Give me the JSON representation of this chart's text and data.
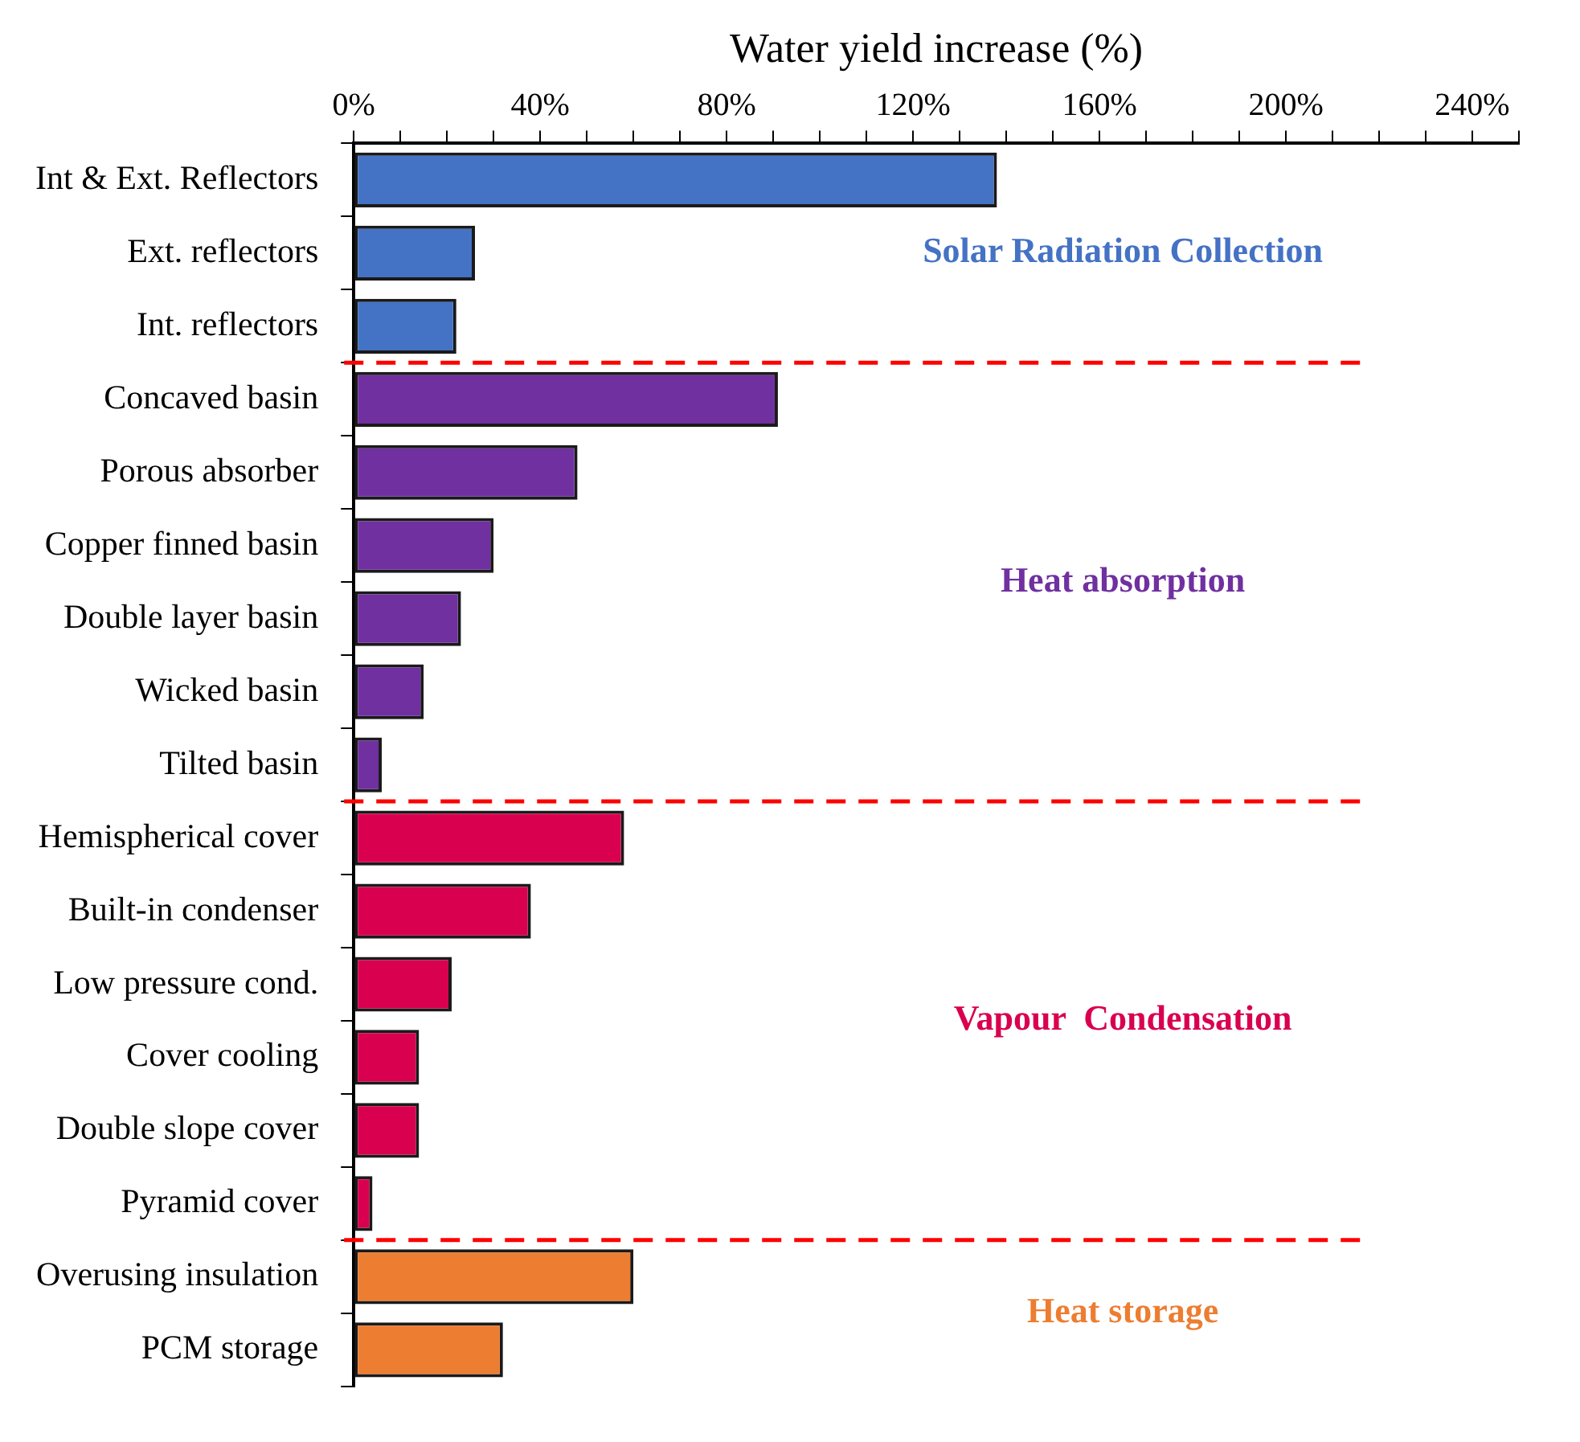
{
  "chart_data": {
    "type": "bar",
    "orientation": "horizontal",
    "xlabel": "Water yield increase (%)",
    "categories": [
      "Int & Ext. Reflectors",
      "Ext. reflectors",
      "Int. reflectors",
      "Concaved basin",
      "Porous absorber",
      "Copper finned basin",
      "Double layer basin",
      "Wicked basin",
      "Tilted basin",
      "Hemispherical cover",
      "Built-in condenser",
      "Low pressure cond.",
      "Cover cooling",
      "Double slope cover",
      "Pyramid cover",
      "Overusing insulation",
      "PCM storage"
    ],
    "values": [
      138,
      26,
      22,
      91,
      48,
      30,
      23,
      15,
      6,
      58,
      38,
      21,
      14,
      14,
      4,
      60,
      32
    ],
    "colors": [
      "#4472c4",
      "#4472c4",
      "#4472c4",
      "#7030a0",
      "#7030a0",
      "#7030a0",
      "#7030a0",
      "#7030a0",
      "#7030a0",
      "#d9004f",
      "#d9004f",
      "#d9004f",
      "#d9004f",
      "#d9004f",
      "#d9004f",
      "#ed7d31",
      "#ed7d31"
    ],
    "xlim": [
      0,
      250
    ],
    "xticks": [
      {
        "value": 0,
        "label": "0%"
      },
      {
        "value": 10,
        "label": null
      },
      {
        "value": 20,
        "label": null
      },
      {
        "value": 30,
        "label": null
      },
      {
        "value": 40,
        "label": "40%"
      },
      {
        "value": 50,
        "label": null
      },
      {
        "value": 60,
        "label": null
      },
      {
        "value": 70,
        "label": null
      },
      {
        "value": 80,
        "label": "80%"
      },
      {
        "value": 90,
        "label": null
      },
      {
        "value": 100,
        "label": null
      },
      {
        "value": 110,
        "label": null
      },
      {
        "value": 120,
        "label": "120%"
      },
      {
        "value": 130,
        "label": null
      },
      {
        "value": 140,
        "label": null
      },
      {
        "value": 150,
        "label": null
      },
      {
        "value": 160,
        "label": "160%"
      },
      {
        "value": 170,
        "label": null
      },
      {
        "value": 180,
        "label": null
      },
      {
        "value": 190,
        "label": null
      },
      {
        "value": 200,
        "label": "200%"
      },
      {
        "value": 210,
        "label": null
      },
      {
        "value": 220,
        "label": null
      },
      {
        "value": 230,
        "label": null
      },
      {
        "value": 240,
        "label": "240%"
      },
      {
        "value": 250,
        "label": null
      }
    ],
    "grid": false,
    "legend": false,
    "annotations": [
      "Solar Radiation Collection",
      "Heat absorption",
      "Vapour  Condensation",
      "Heat storage"
    ]
  }
}
